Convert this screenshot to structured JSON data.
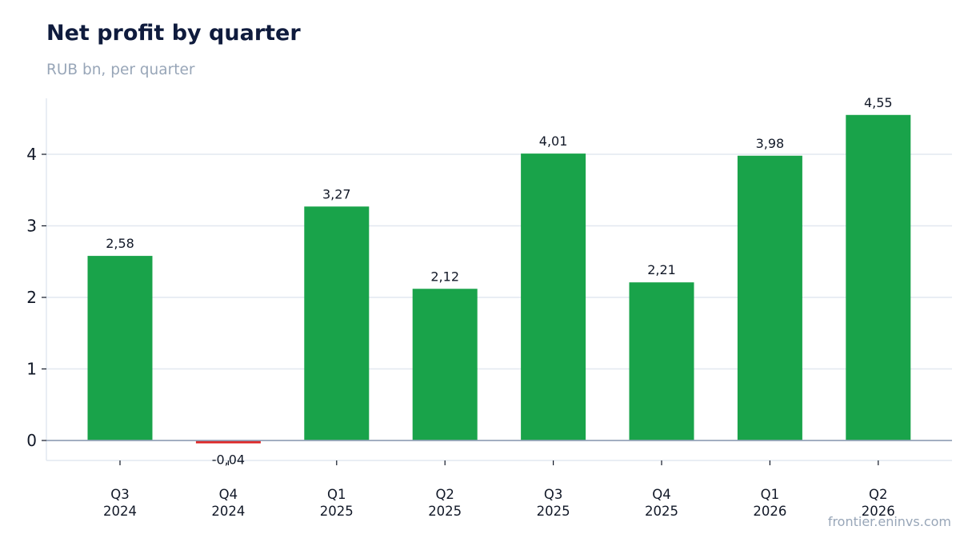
{
  "header": {
    "title": "Net profit by quarter",
    "subtitle": "RUB bn, per quarter"
  },
  "footer": {
    "source": "frontier.eninvs.com"
  },
  "colors": {
    "positive": "#19a34a",
    "negative": "#dc2626",
    "gridline": "#e2e8f0",
    "zero_line": "#94a3b8",
    "text": "#111827"
  },
  "chart_data": {
    "type": "bar",
    "title": "Net profit by quarter",
    "subtitle": "RUB bn, per quarter",
    "xlabel": "",
    "ylabel": "",
    "categories": [
      "Q3\n2024",
      "Q4\n2024",
      "Q1\n2025",
      "Q2\n2025",
      "Q3\n2025",
      "Q4\n2025",
      "Q1\n2026",
      "Q2\n2026"
    ],
    "values": [
      2.58,
      -0.04,
      3.27,
      2.12,
      4.01,
      2.21,
      3.98,
      4.55
    ],
    "value_labels": [
      "2,58",
      "-0,04",
      "3,27",
      "2,12",
      "4,01",
      "2,21",
      "3,98",
      "4,55"
    ],
    "yticks": [
      0,
      1,
      2,
      3,
      4
    ],
    "ylim": [
      -0.28,
      4.78
    ],
    "grid": true,
    "legend": "none"
  }
}
